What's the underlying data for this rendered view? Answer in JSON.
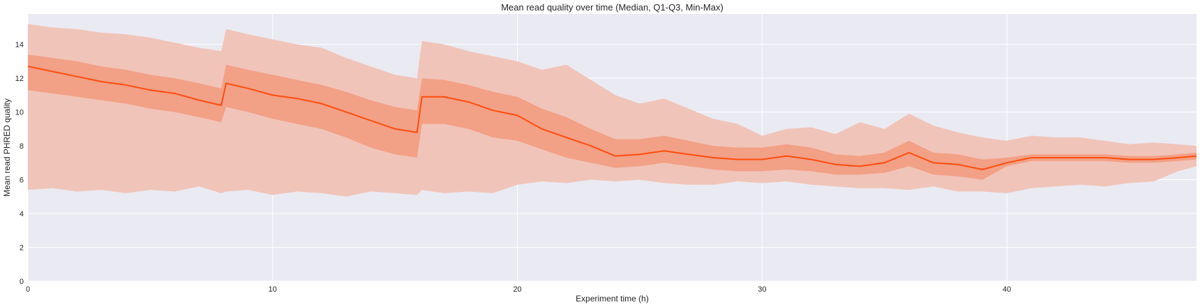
{
  "chart_data": {
    "type": "area",
    "title": "Mean read quality over time (Median, Q1-Q3, Min-Max)",
    "xlabel": "Experiment time (h)",
    "ylabel": "Mean read PHRED quality",
    "xlim": [
      0,
      47.75
    ],
    "ylim": [
      0,
      15.8
    ],
    "xticks": [
      0,
      10,
      20,
      30,
      40
    ],
    "yticks": [
      0,
      2,
      4,
      6,
      8,
      10,
      12,
      14
    ],
    "grid": true,
    "legend": "none",
    "x": [
      0,
      1,
      2,
      3,
      4,
      5,
      6,
      7,
      7.9,
      8.1,
      9,
      10,
      11,
      12,
      13,
      14,
      15,
      15.9,
      16.1,
      17,
      18,
      19,
      20,
      21,
      22,
      23,
      24,
      25,
      26,
      27,
      28,
      29,
      30,
      31,
      32,
      33,
      34,
      35,
      36,
      37,
      38,
      39,
      40,
      41,
      42,
      43,
      44,
      45,
      46,
      47,
      47.75
    ],
    "series": [
      {
        "values": [
          12.7,
          12.4,
          12.1,
          11.8,
          11.6,
          11.3,
          11.1,
          10.7,
          10.4,
          11.7,
          11.4,
          11.0,
          10.8,
          10.5,
          10.0,
          9.5,
          9.0,
          8.8,
          10.9,
          10.9,
          10.6,
          10.1,
          9.8,
          9.0,
          8.5,
          8.0,
          7.4,
          7.5,
          7.7,
          7.5,
          7.3,
          7.2,
          7.2,
          7.4,
          7.2,
          6.9,
          6.8,
          7.0,
          7.6,
          7.0,
          6.9,
          6.6,
          7.0,
          7.3,
          7.3,
          7.3,
          7.3,
          7.2,
          7.2,
          7.3,
          7.4
        ]
      },
      {
        "values": [
          11.3,
          11.1,
          10.9,
          10.7,
          10.5,
          10.2,
          10.0,
          9.7,
          9.4,
          10.3,
          10.0,
          9.6,
          9.3,
          9.0,
          8.5,
          7.9,
          7.5,
          7.3,
          9.3,
          9.3,
          9.0,
          8.5,
          8.3,
          7.8,
          7.3,
          7.0,
          6.7,
          6.8,
          7.0,
          6.8,
          6.6,
          6.5,
          6.5,
          6.6,
          6.5,
          6.3,
          6.3,
          6.4,
          6.8,
          6.3,
          6.2,
          6.0,
          6.8,
          7.1,
          7.1,
          7.1,
          7.1,
          7.0,
          7.0,
          7.1,
          7.2
        ]
      },
      {
        "values": [
          13.4,
          13.2,
          13.0,
          12.7,
          12.5,
          12.2,
          12.0,
          11.7,
          11.4,
          12.8,
          12.5,
          12.2,
          11.9,
          11.6,
          11.2,
          10.7,
          10.3,
          10.1,
          12.0,
          11.9,
          11.6,
          11.2,
          10.9,
          10.2,
          9.7,
          9.0,
          8.4,
          8.4,
          8.6,
          8.3,
          8.0,
          7.9,
          7.9,
          8.1,
          7.9,
          7.5,
          7.4,
          7.6,
          8.3,
          7.6,
          7.5,
          7.2,
          7.3,
          7.5,
          7.5,
          7.5,
          7.5,
          7.4,
          7.4,
          7.5,
          7.6
        ]
      },
      {
        "values": [
          5.4,
          5.5,
          5.3,
          5.4,
          5.2,
          5.4,
          5.3,
          5.6,
          5.2,
          5.3,
          5.4,
          5.1,
          5.3,
          5.2,
          5.0,
          5.3,
          5.2,
          5.1,
          5.4,
          5.2,
          5.3,
          5.2,
          5.7,
          5.9,
          5.8,
          6.0,
          5.9,
          6.0,
          5.8,
          5.7,
          5.7,
          5.9,
          5.8,
          5.9,
          5.7,
          5.6,
          5.5,
          5.5,
          5.4,
          5.6,
          5.3,
          5.3,
          5.2,
          5.5,
          5.6,
          5.7,
          5.6,
          5.8,
          5.9,
          6.5,
          6.8
        ]
      },
      {
        "values": [
          15.2,
          15.0,
          14.9,
          14.7,
          14.6,
          14.4,
          14.1,
          13.8,
          13.6,
          14.9,
          14.6,
          14.3,
          14.0,
          13.8,
          13.2,
          12.7,
          12.2,
          12.0,
          14.2,
          14.0,
          13.6,
          13.3,
          13.0,
          12.5,
          12.8,
          11.9,
          11.0,
          10.5,
          10.8,
          10.2,
          9.6,
          9.3,
          8.6,
          9.0,
          9.1,
          8.7,
          9.4,
          9.0,
          9.9,
          9.2,
          8.8,
          8.5,
          8.3,
          8.6,
          8.5,
          8.5,
          8.3,
          8.1,
          8.2,
          8.1,
          8.0
        ]
      }
    ],
    "band_colors": {
      "min_max": "#f1c4b9",
      "q1_q3": "#f2a086",
      "median": "#ff4d0d"
    },
    "plot_bg": "#eaeaf2",
    "grid_color": "#ffffff"
  }
}
